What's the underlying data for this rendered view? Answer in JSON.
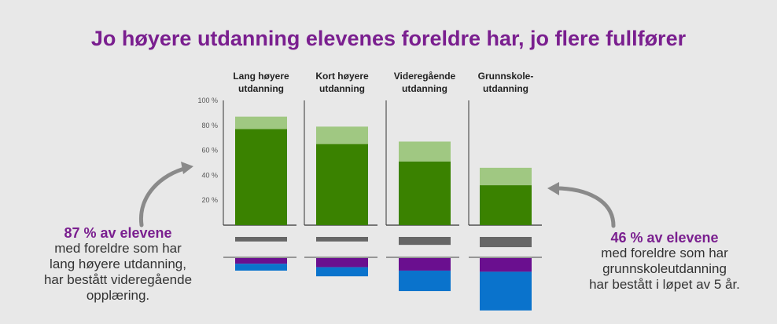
{
  "title": "Jo høyere utdanning elevenes foreldre har, jo flere fullfører",
  "colors": {
    "title": "#7a1f8f",
    "completed_on_time": "#3a8200",
    "completed_total": "#a0c882",
    "gray": "#666666",
    "purple": "#6a0f8f",
    "blue": "#0a73cc",
    "background": "#e8e8e8"
  },
  "callouts": {
    "left": {
      "highlight": "87 % av elevene",
      "lines": [
        "med foreldre som har",
        "lang høyere utdanning,",
        "har bestått videregående",
        "opplæring."
      ]
    },
    "right": {
      "highlight": "46 % av elevene",
      "lines": [
        "med foreldre som har",
        "grunnskoleutdanning",
        "har bestått i løpet av 5 år."
      ]
    }
  },
  "chart_data": {
    "type": "bar",
    "ylim": [
      0,
      100
    ],
    "y_ticks": [
      "100 %",
      "80 %",
      "60 %",
      "40 %",
      "20 %"
    ],
    "y_tick_values": [
      100,
      80,
      60,
      40,
      20
    ],
    "grid": false,
    "categories": [
      [
        "Lang høyere",
        "utdanning"
      ],
      [
        "Kort høyere",
        "utdanning"
      ],
      [
        "Videregående",
        "utdanning"
      ],
      [
        "Grunnskole-",
        "utdanning"
      ]
    ],
    "series": [
      {
        "values": [
          77,
          65,
          51,
          32
        ]
      },
      {
        "values": [
          87,
          79,
          67,
          46
        ]
      },
      {
        "values": [
          4,
          4,
          7,
          9
        ]
      },
      {
        "values": [
          5,
          8,
          11,
          12
        ]
      },
      {
        "values": [
          6,
          8,
          18,
          34
        ]
      }
    ]
  }
}
